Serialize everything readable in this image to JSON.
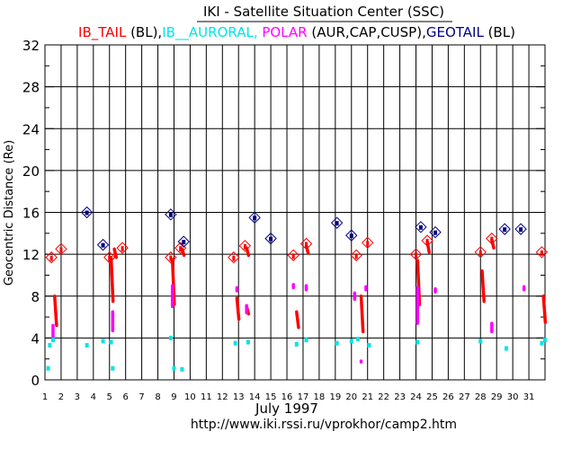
{
  "chart_data": {
    "type": "scatter",
    "title": "IKI - Satellite Situation Center (SSC)",
    "subtitle_parts": [
      {
        "text": "IB_TAIL",
        "color": "#ff0000"
      },
      {
        "text": " (BL),",
        "color": "#000000"
      },
      {
        "text": "IB__AURORAL,",
        "color": "#00e5e5"
      },
      {
        "text": " POLAR",
        "color": "#ff00ff"
      },
      {
        "text": " (AUR,CAP,CUSP),",
        "color": "#000000"
      },
      {
        "text": "GEOTAIL",
        "color": "#000080"
      },
      {
        "text": " (BL)",
        "color": "#000000"
      }
    ],
    "ylabel": "Geocentric Distance (Re)",
    "xlabel": "July    1997",
    "url": "http://www.iki.rssi.ru/vprokhor/camp2.htm",
    "xlim": [
      1,
      32
    ],
    "ylim": [
      0,
      32
    ],
    "yticks": [
      0,
      4,
      8,
      12,
      16,
      20,
      24,
      28,
      32
    ],
    "xticks": [
      1,
      2,
      3,
      4,
      5,
      6,
      7,
      8,
      9,
      10,
      11,
      12,
      13,
      14,
      15,
      16,
      17,
      18,
      19,
      20,
      21,
      22,
      23,
      24,
      25,
      26,
      27,
      28,
      29,
      30,
      31
    ],
    "grid": true,
    "colors": {
      "ib_tail": "#ff0000",
      "ib_auroral": "#00e5e5",
      "polar": "#ff00ff",
      "geotail": "#000080"
    },
    "ib_tail_markers": [
      [
        1.4,
        11.7
      ],
      [
        2.0,
        12.5
      ],
      [
        5.0,
        11.7
      ],
      [
        5.8,
        12.6
      ],
      [
        8.8,
        11.7
      ],
      [
        9.4,
        12.6
      ],
      [
        12.7,
        11.7
      ],
      [
        13.4,
        12.8
      ],
      [
        16.4,
        11.9
      ],
      [
        17.2,
        13.0
      ],
      [
        20.3,
        11.9
      ],
      [
        21.0,
        13.1
      ],
      [
        24.0,
        12.0
      ],
      [
        24.7,
        13.3
      ],
      [
        28.0,
        12.2
      ],
      [
        28.7,
        13.5
      ],
      [
        31.8,
        12.2
      ]
    ],
    "geotail_markers": [
      [
        3.6,
        16.0
      ],
      [
        4.6,
        12.9
      ],
      [
        8.8,
        15.8
      ],
      [
        9.6,
        13.2
      ],
      [
        14.0,
        15.5
      ],
      [
        15.0,
        13.5
      ],
      [
        19.1,
        15.0
      ],
      [
        20.0,
        13.8
      ],
      [
        24.3,
        14.6
      ],
      [
        25.2,
        14.1
      ],
      [
        29.5,
        14.4
      ],
      [
        30.5,
        14.4
      ]
    ],
    "ib_tail_segments": [
      [
        1.6,
        8.0,
        5.2
      ],
      [
        5.1,
        11.7,
        7.5
      ],
      [
        8.9,
        11.5,
        7.2
      ],
      [
        12.9,
        7.8,
        5.8
      ],
      [
        13.5,
        7.0,
        6.3
      ],
      [
        16.6,
        6.5,
        5.0
      ],
      [
        20.6,
        8.0,
        4.6
      ],
      [
        24.1,
        11.4,
        7.2
      ],
      [
        28.1,
        10.4,
        7.5
      ],
      [
        31.9,
        8.0,
        5.5
      ],
      [
        5.3,
        12.5,
        11.7
      ],
      [
        9.5,
        12.5,
        11.9
      ],
      [
        13.5,
        12.6,
        11.9
      ],
      [
        17.2,
        12.8,
        12.1
      ],
      [
        24.7,
        13.2,
        12.2
      ],
      [
        28.7,
        13.4,
        12.6
      ]
    ],
    "polar_segments": [
      [
        1.5,
        5.2,
        4.1
      ],
      [
        5.2,
        6.5,
        4.7
      ],
      [
        8.9,
        9.0,
        7.0
      ],
      [
        12.9,
        8.8,
        8.5
      ],
      [
        13.5,
        7.1,
        6.4
      ],
      [
        16.4,
        9.1,
        8.8
      ],
      [
        17.2,
        9.0,
        8.6
      ],
      [
        20.2,
        8.3,
        7.7
      ],
      [
        20.9,
        8.9,
        8.6
      ],
      [
        24.1,
        8.8,
        5.4
      ],
      [
        25.2,
        8.7,
        8.4
      ],
      [
        28.7,
        5.4,
        4.6
      ],
      [
        30.7,
        8.9,
        8.6
      ],
      [
        20.6,
        1.8,
        1.7
      ]
    ],
    "ib_auroral_points": [
      [
        1.3,
        3.3
      ],
      [
        1.5,
        3.8
      ],
      [
        1.2,
        1.1
      ],
      [
        3.6,
        3.3
      ],
      [
        4.6,
        3.7
      ],
      [
        5.1,
        3.6
      ],
      [
        5.2,
        1.1
      ],
      [
        8.8,
        4.0
      ],
      [
        9.0,
        1.1
      ],
      [
        9.5,
        1.0
      ],
      [
        12.8,
        3.5
      ],
      [
        13.6,
        3.6
      ],
      [
        16.6,
        3.4
      ],
      [
        17.2,
        3.8
      ],
      [
        19.1,
        3.5
      ],
      [
        20.0,
        3.7
      ],
      [
        20.4,
        3.9
      ],
      [
        21.1,
        3.3
      ],
      [
        24.1,
        3.6
      ],
      [
        28.0,
        3.7
      ],
      [
        29.6,
        3.0
      ],
      [
        31.8,
        3.5
      ],
      [
        32.0,
        3.8
      ]
    ]
  }
}
